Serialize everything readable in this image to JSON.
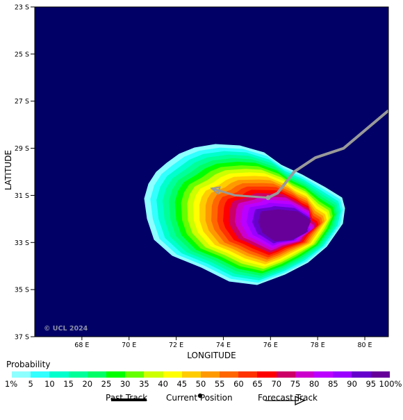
{
  "map": {
    "latitude_labels": [
      "23 S",
      "25 S",
      "27 S",
      "29 S",
      "31 S",
      "33 S",
      "35 S",
      "37 S"
    ],
    "longitude_labels": [
      "68 E",
      "70 E",
      "72 E",
      "74 E",
      "76 E",
      "78 E",
      "80 E"
    ],
    "xlabel": "LONGITUDE",
    "ylabel": "LATITUDE",
    "watermark": "© UCL 2024",
    "background_color": "#000066",
    "past_track": [
      [
        81.0,
        -27.4
      ],
      [
        79.1,
        -29.0
      ],
      [
        77.9,
        -29.4
      ],
      [
        77.0,
        -30.0
      ],
      [
        76.3,
        -30.9
      ],
      [
        75.9,
        -31.1
      ]
    ],
    "current_position": [
      75.9,
      -31.1
    ],
    "forecast_track": [
      [
        75.9,
        -31.1
      ],
      [
        74.5,
        -31.0
      ],
      [
        73.5,
        -30.7
      ]
    ]
  },
  "legend": {
    "title": "Probability",
    "labels": [
      "1%",
      "5",
      "10",
      "15",
      "20",
      "25",
      "30",
      "35",
      "40",
      "45",
      "50",
      "55",
      "60",
      "65",
      "70",
      "75",
      "80",
      "85",
      "90",
      "95",
      "100%"
    ],
    "colors": [
      "#8effff",
      "#33ffff",
      "#00ffcc",
      "#00ff99",
      "#00ff66",
      "#00ff00",
      "#66ff00",
      "#ccff00",
      "#ffff00",
      "#ffcc00",
      "#ff9900",
      "#ff6600",
      "#ff3300",
      "#ff0000",
      "#cc0066",
      "#cc00cc",
      "#bb00ff",
      "#9900ff",
      "#6600cc",
      "#660099"
    ],
    "key": {
      "past_track": "Past Track",
      "current_position": "Current Position",
      "forecast_track": "Forecast Track"
    }
  }
}
